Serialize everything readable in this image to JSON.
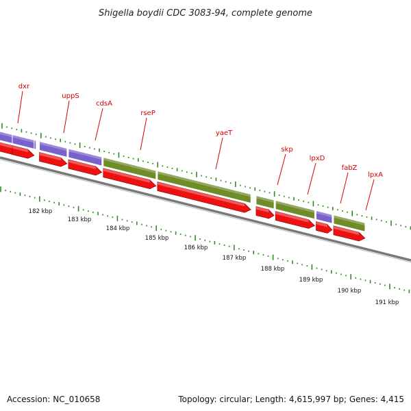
{
  "title": "Shigella boydii CDC 3083-94, complete genome",
  "footer": {
    "accession": "Accession: NC_010658",
    "topology": "Topology: circular; Length: 4,615,997 bp; Genes: 4,415"
  },
  "colors": {
    "cds": "#ee1111",
    "trna_like": "#7a62cc",
    "gene_bar": "#6f8c28",
    "backbone": "#777777",
    "tick": "#2e8b22",
    "label": "#d40000"
  },
  "genes": [
    {
      "name": "dxr",
      "start": 181.3,
      "end": 181.9,
      "bar": "purple"
    },
    {
      "name": "uppS",
      "start": 182.0,
      "end": 182.75,
      "bar": "purple"
    },
    {
      "name": "cdsA",
      "start": 182.75,
      "end": 183.65,
      "bar": "purple"
    },
    {
      "name": "rseP",
      "start": 183.65,
      "end": 185.05,
      "bar": "green"
    },
    {
      "name": "yaeT",
      "start": 185.05,
      "end": 187.5,
      "bar": "green"
    },
    {
      "name": "skp",
      "start": 187.6,
      "end": 188.1,
      "bar": "green"
    },
    {
      "name": "lpxD",
      "start": 188.1,
      "end": 189.15,
      "bar": "green"
    },
    {
      "name": "fabZ",
      "start": 189.15,
      "end": 189.6,
      "bar": "purple"
    },
    {
      "name": "lpxA",
      "start": 189.6,
      "end": 190.45,
      "bar": "green"
    }
  ],
  "gene_labels": [
    "dxr",
    "uppS",
    "cdsA",
    "rseP",
    "yaeT",
    "skp",
    "lpxD",
    "fabZ",
    "lpxA"
  ],
  "kbp_ticks": [
    "182 kbp",
    "183 kbp",
    "184 kbp",
    "185 kbp",
    "186 kbp",
    "187 kbp",
    "188 kbp",
    "189 kbp",
    "190 kbp",
    "191 kbp"
  ]
}
